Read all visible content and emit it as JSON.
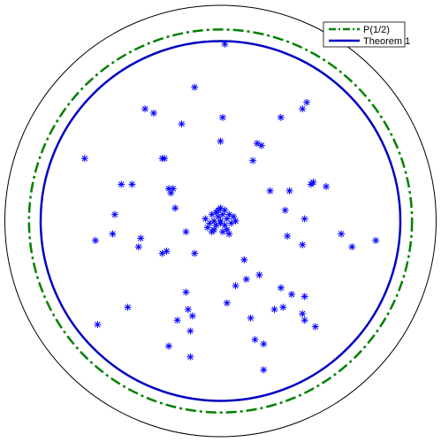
{
  "chart_data": {
    "type": "scatter",
    "title": "",
    "xlabel": "",
    "ylabel": "",
    "xlim": [
      -1.02,
      1.02
    ],
    "ylim": [
      -1.02,
      1.02
    ],
    "grid": false,
    "legend_position": "top-right",
    "colors": {
      "unit_circle": "#000000",
      "p_half": "#008000",
      "theorem1": "#0000c0",
      "points": "#0000ff"
    },
    "circles": [
      {
        "name": "unit-circle",
        "radius": 1.0,
        "style": "solid"
      },
      {
        "name": "P(1/2)",
        "radius": 0.888,
        "style": "dashdot"
      },
      {
        "name": "Theorem 1",
        "radius": 0.834,
        "style": "solid"
      }
    ],
    "legend": [
      {
        "label": "P(1/2)",
        "style": "dashdot",
        "color": "#008000"
      },
      {
        "label": "Theorem 1",
        "style": "solid",
        "color": "#0000c0"
      }
    ],
    "series": [
      {
        "marker": "asterisk",
        "points": [
          [
            0.02,
            0.82
          ],
          [
            -0.12,
            0.62
          ],
          [
            -0.35,
            0.52
          ],
          [
            -0.31,
            0.5
          ],
          [
            -0.18,
            0.45
          ],
          [
            0.01,
            0.48
          ],
          [
            0.28,
            0.48
          ],
          [
            0.4,
            0.55
          ],
          [
            0.38,
            0.52
          ],
          [
            -0.63,
            0.29
          ],
          [
            -0.27,
            0.29
          ],
          [
            -0.26,
            0.29
          ],
          [
            0.0,
            0.37
          ],
          [
            0.15,
            0.28
          ],
          [
            0.17,
            0.36
          ],
          [
            0.19,
            0.35
          ],
          [
            -0.46,
            0.17
          ],
          [
            -0.41,
            0.17
          ],
          [
            -0.24,
            0.15
          ],
          [
            -0.22,
            0.15
          ],
          [
            -0.23,
            0.13
          ],
          [
            0.23,
            0.14
          ],
          [
            0.32,
            0.14
          ],
          [
            0.42,
            0.17
          ],
          [
            0.43,
            0.18
          ],
          [
            0.49,
            0.16
          ],
          [
            -0.49,
            0.03
          ],
          [
            -0.21,
            0.06
          ],
          [
            0.3,
            0.05
          ],
          [
            -0.5,
            -0.06
          ],
          [
            -0.58,
            -0.09
          ],
          [
            -0.37,
            -0.08
          ],
          [
            -0.16,
            -0.05
          ],
          [
            0.39,
            0.01
          ],
          [
            0.31,
            -0.07
          ],
          [
            -0.38,
            -0.12
          ],
          [
            -0.27,
            -0.15
          ],
          [
            -0.25,
            -0.14
          ],
          [
            -0.12,
            -0.15
          ],
          [
            0.38,
            -0.11
          ],
          [
            0.56,
            -0.06
          ],
          [
            0.72,
            -0.09
          ],
          [
            0.61,
            -0.12
          ],
          [
            0.11,
            -0.18
          ],
          [
            -0.43,
            -0.4
          ],
          [
            -0.16,
            -0.33
          ],
          [
            0.03,
            -0.38
          ],
          [
            0.07,
            -0.3
          ],
          [
            0.12,
            -0.27
          ],
          [
            0.18,
            -0.25
          ],
          [
            0.28,
            -0.31
          ],
          [
            0.33,
            -0.34
          ],
          [
            0.39,
            -0.35
          ],
          [
            0.29,
            -0.4
          ],
          [
            0.38,
            -0.43
          ],
          [
            -0.57,
            -0.48
          ],
          [
            -0.2,
            -0.46
          ],
          [
            -0.13,
            -0.44
          ],
          [
            -0.15,
            -0.41
          ],
          [
            0.14,
            -0.45
          ],
          [
            -0.14,
            -0.51
          ],
          [
            0.16,
            -0.55
          ],
          [
            -0.14,
            -0.63
          ],
          [
            0.2,
            -0.69
          ],
          [
            -0.24,
            -0.58
          ],
          [
            0.2,
            -0.57
          ],
          [
            0.25,
            -0.41
          ],
          [
            0.39,
            -0.46
          ],
          [
            0.44,
            -0.49
          ],
          [
            -0.01,
            0.02
          ],
          [
            0.01,
            0.03
          ],
          [
            0.03,
            0.01
          ],
          [
            -0.03,
            0.0
          ],
          [
            0.0,
            -0.01
          ],
          [
            -0.02,
            -0.02
          ],
          [
            0.02,
            -0.02
          ],
          [
            -0.04,
            0.03
          ],
          [
            0.04,
            0.03
          ],
          [
            -0.05,
            -0.01
          ],
          [
            0.05,
            -0.01
          ],
          [
            -0.01,
            0.05
          ],
          [
            0.01,
            -0.05
          ],
          [
            -0.06,
            -0.03
          ],
          [
            0.06,
            0.02
          ],
          [
            0.0,
            0.0
          ],
          [
            -0.03,
            -0.04
          ],
          [
            0.03,
            -0.04
          ],
          [
            -0.02,
            0.04
          ],
          [
            0.02,
            0.05
          ],
          [
            -0.07,
            0.01
          ],
          [
            0.07,
            0.0
          ],
          [
            -0.04,
            -0.05
          ],
          [
            0.04,
            -0.06
          ],
          [
            0.0,
            0.06
          ]
        ]
      }
    ]
  }
}
